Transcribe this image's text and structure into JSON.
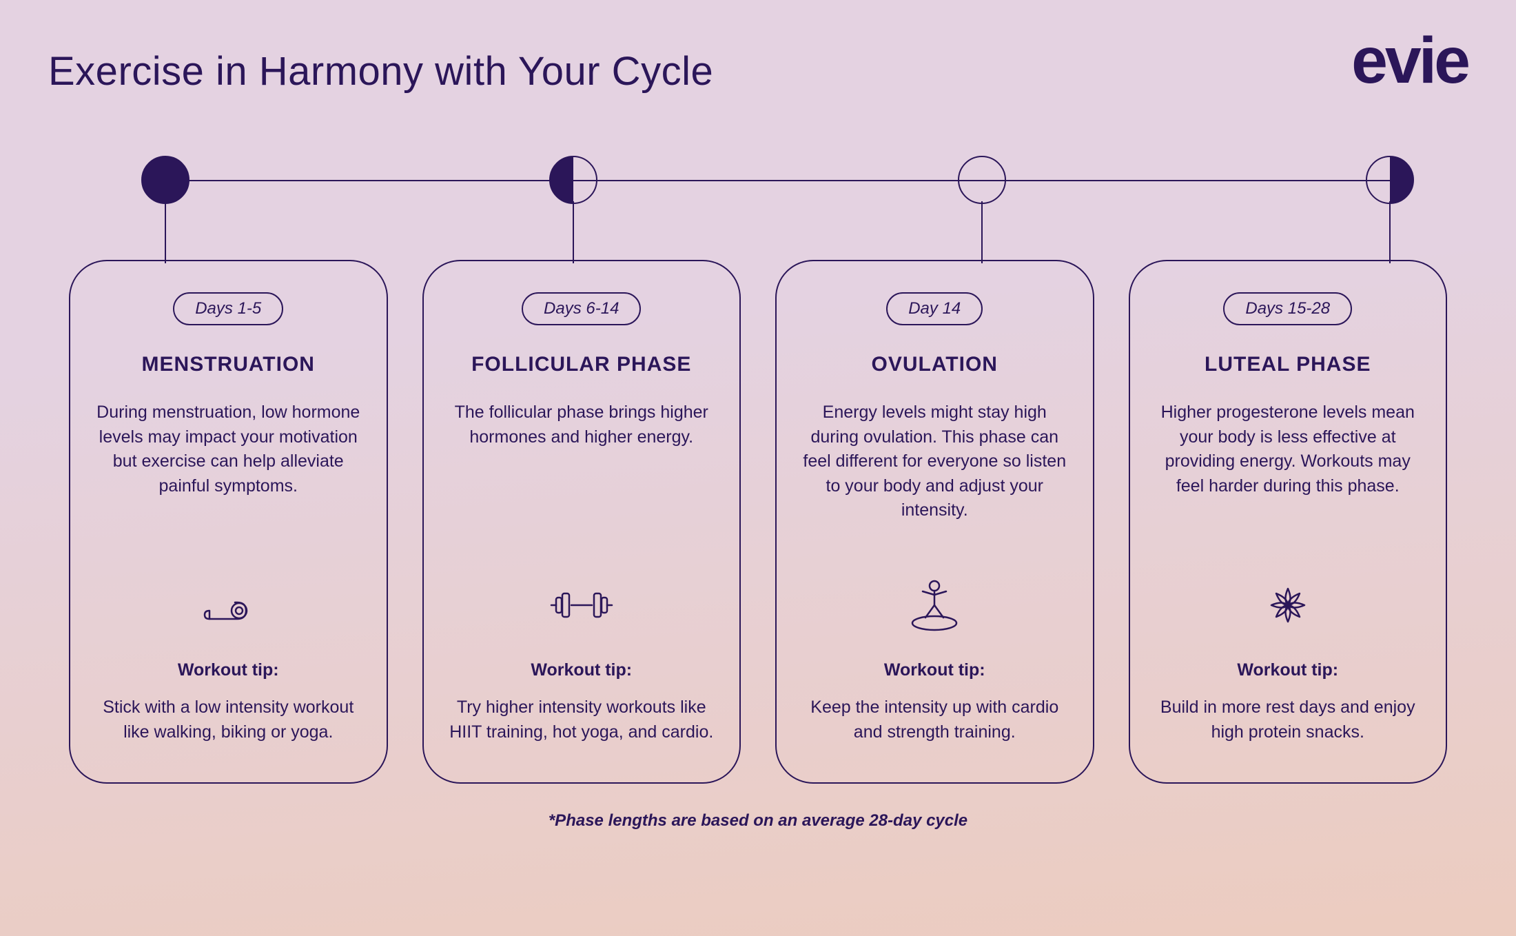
{
  "colors": {
    "primary": "#2b1659",
    "bg_top": "#e4d2e1",
    "bg_bottom": "#ecccbf",
    "card_border": "#2b1659",
    "line": "#2b1659"
  },
  "title": "Exercise in Harmony with Your Cycle",
  "logo": "evie",
  "footnote": "*Phase lengths are based on an average 28-day cycle",
  "timeline": {
    "moons": [
      {
        "fill": "full",
        "left_pct": 0
      },
      {
        "fill": "half-left",
        "left_pct": 32.2
      },
      {
        "fill": "empty",
        "left_pct": 64.4
      },
      {
        "fill": "half-right",
        "left_pct": 96.6
      }
    ]
  },
  "phases": [
    {
      "days": "Days 1-5",
      "title": "MENSTRUATION",
      "desc": "During menstruation, low hormone levels may impact your motivation but exercise can help alleviate painful symptoms.",
      "icon": "yoga-mat",
      "tip_label": "Workout tip:",
      "tip": "Stick with a low intensity workout like walking, biking or yoga."
    },
    {
      "days": "Days 6-14",
      "title": "FOLLICULAR PHASE",
      "desc": "The follicular phase brings higher hormones and higher energy.",
      "icon": "dumbbell",
      "tip_label": "Workout tip:",
      "tip": "Try higher intensity workouts like HIIT training, hot yoga, and cardio."
    },
    {
      "days": "Day 14",
      "title": "OVULATION",
      "desc": "Energy levels might stay high during ovulation. This phase can feel different for everyone so listen to your body and adjust your intensity.",
      "icon": "stretch-person",
      "tip_label": "Workout tip:",
      "tip": "Keep the intensity up with cardio and strength training."
    },
    {
      "days": "Days 15-28",
      "title": "LUTEAL PHASE",
      "desc": "Higher progesterone levels mean your body is less effective at providing energy. Workouts may feel harder during this phase.",
      "icon": "lotus-flower",
      "tip_label": "Workout tip:",
      "tip": "Build in more rest days and enjoy high protein snacks."
    }
  ]
}
